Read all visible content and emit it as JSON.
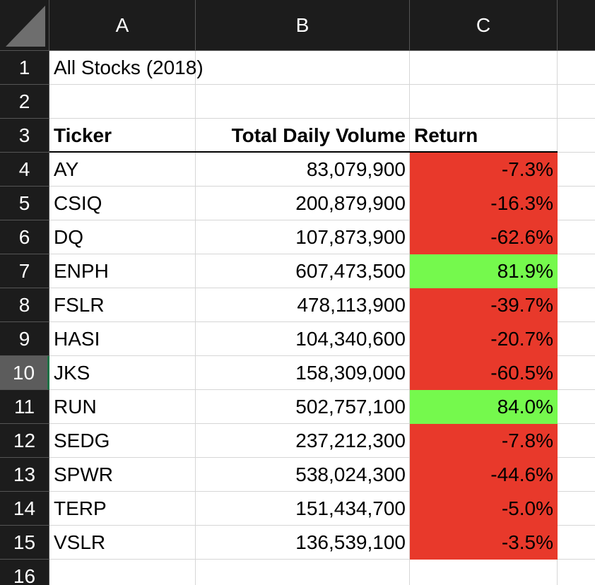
{
  "column_headers": [
    "A",
    "B",
    "C"
  ],
  "row_headers": [
    "1",
    "2",
    "3",
    "4",
    "5",
    "6",
    "7",
    "8",
    "9",
    "10",
    "11",
    "12",
    "13",
    "14",
    "15",
    "16"
  ],
  "title": "All Stocks (2018)",
  "table": {
    "header": [
      "Ticker",
      "Total Daily Volume",
      "Return"
    ],
    "rows": [
      [
        "AY",
        "83,079,900",
        "-7.3%"
      ],
      [
        "CSIQ",
        "200,879,900",
        "-16.3%"
      ],
      [
        "DQ",
        "107,873,900",
        "-62.6%"
      ],
      [
        "ENPH",
        "607,473,500",
        "81.9%"
      ],
      [
        "FSLR",
        "478,113,900",
        "-39.7%"
      ],
      [
        "HASI",
        "104,340,600",
        "-20.7%"
      ],
      [
        "JKS",
        "158,309,000",
        "-60.5%"
      ],
      [
        "RUN",
        "502,757,100",
        "84.0%"
      ],
      [
        "SEDG",
        "237,212,300",
        "-7.8%"
      ],
      [
        "SPWR",
        "538,024,300",
        "-44.6%"
      ],
      [
        "TERP",
        "151,434,700",
        "-5.0%"
      ],
      [
        "VSLR",
        "136,539,100",
        "-3.5%"
      ]
    ],
    "return_fills": [
      "#e8392b",
      "#e8392b",
      "#e8392b",
      "#75f94d",
      "#e8392b",
      "#e8392b",
      "#e8392b",
      "#75f94d",
      "#e8392b",
      "#e8392b",
      "#e8392b",
      "#e8392b"
    ]
  }
}
